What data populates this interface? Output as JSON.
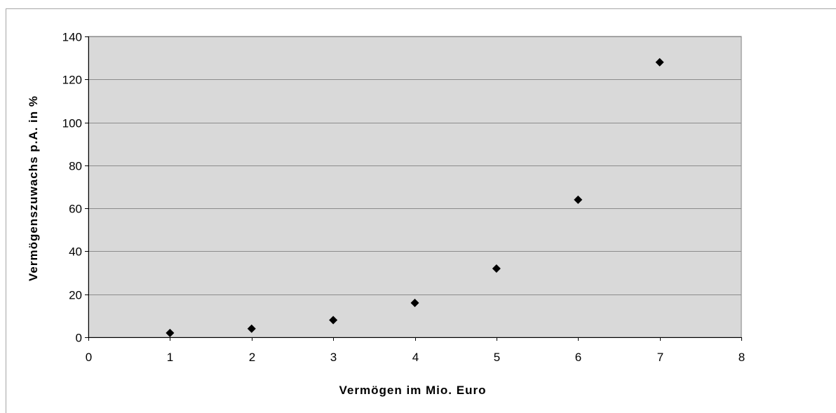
{
  "chart_data": {
    "type": "scatter",
    "title": "",
    "xlabel": "Vermögen im Mio. Euro",
    "ylabel": "Vermögenszuwachs p.A. in %",
    "xlim": [
      0,
      8
    ],
    "ylim": [
      0,
      140
    ],
    "xticks": [
      0,
      1,
      2,
      3,
      4,
      5,
      6,
      7,
      8
    ],
    "yticks": [
      0,
      20,
      40,
      60,
      80,
      100,
      120,
      140
    ],
    "grid": "horizontal",
    "legend": "none",
    "colors": {
      "plot_background": "#d9d9d9",
      "marker": "#000000",
      "gridline": "#8c8c8c"
    },
    "marker_shape": "diamond",
    "series": [
      {
        "x": [
          1,
          2,
          3,
          4,
          5,
          6,
          7
        ],
        "y": [
          2,
          4,
          8,
          16,
          32,
          64,
          128
        ]
      }
    ]
  }
}
